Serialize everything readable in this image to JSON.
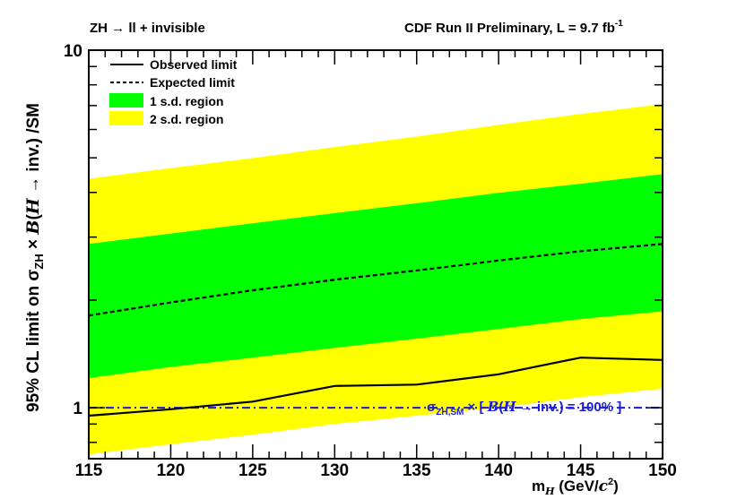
{
  "chart_data": {
    "type": "line",
    "title_left": "ZH → ll + invisible",
    "title_right": "CDF Run II Preliminary, L = 9.7 fb",
    "title_right_sup": "-1",
    "xlabel": {
      "m": "m",
      "sub": "H",
      "units": "  (GeV/",
      "c": "c",
      "sup": "2",
      "close": ")"
    },
    "ylabel": {
      "pre": "95% CL limit on σ",
      "sub": "ZH",
      "mid": " × ",
      "B": "B",
      "paren": "(",
      "H": "H",
      "post": " → inv.) /SM"
    },
    "xlim": [
      115,
      150
    ],
    "ylim": [
      0.72,
      10
    ],
    "yscale": "log",
    "x": [
      115,
      120,
      125,
      130,
      135,
      140,
      145,
      150
    ],
    "xtick_labels": [
      "115",
      "120",
      "125",
      "130",
      "135",
      "140",
      "145",
      "150"
    ],
    "ytick_labels": {
      "1": "1",
      "10": "10"
    },
    "series": [
      {
        "name": "Observed limit",
        "style": "solid",
        "color": "#000000",
        "values": [
          0.95,
          0.99,
          1.04,
          1.15,
          1.16,
          1.24,
          1.38,
          1.36
        ]
      },
      {
        "name": "Expected limit",
        "style": "dashed",
        "color": "#000000",
        "values": [
          1.81,
          1.97,
          2.13,
          2.28,
          2.42,
          2.58,
          2.74,
          2.87
        ]
      }
    ],
    "bands": [
      {
        "name": "2 s.d. region",
        "color": "#ffff00",
        "lower": [
          0.74,
          0.79,
          0.84,
          0.9,
          0.95,
          1.0,
          1.07,
          1.13
        ],
        "upper": [
          4.37,
          4.68,
          4.99,
          5.36,
          5.73,
          6.18,
          6.63,
          7.06
        ]
      },
      {
        "name": "1 s.d. region",
        "color": "#00ff00",
        "lower": [
          1.21,
          1.3,
          1.38,
          1.47,
          1.56,
          1.66,
          1.77,
          1.86
        ],
        "upper": [
          2.87,
          3.07,
          3.28,
          3.5,
          3.73,
          3.99,
          4.23,
          4.5
        ]
      }
    ],
    "reference_line": {
      "y": 1.0,
      "style": "dash-dot",
      "color": "#1a1adb",
      "label": {
        "sigma": "σ",
        "sub": "ZH,SM",
        "times": " × [ ",
        "B": "B",
        "p1": "(",
        "H": "H",
        "post": " → inv.) = 100% ]"
      }
    },
    "legend": {
      "placement": "top-left",
      "items": [
        "Observed limit",
        "Expected limit",
        "1 s.d. region",
        "2 s.d. region"
      ]
    }
  }
}
